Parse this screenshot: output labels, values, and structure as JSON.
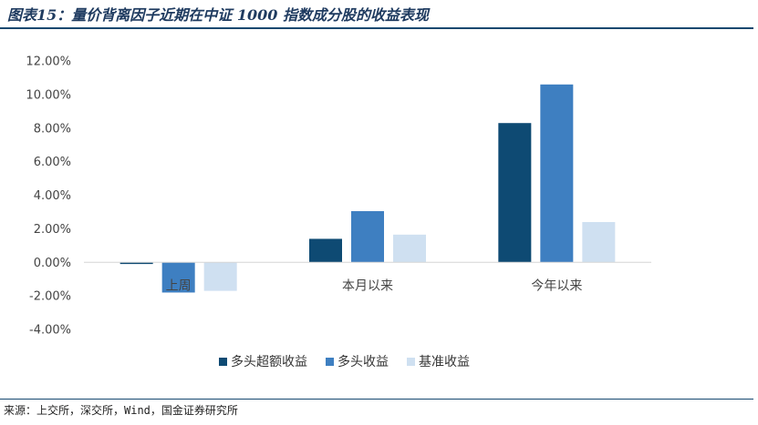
{
  "page": {
    "title": "图表15：量价背离因子近期在中证 1000 指数成分股的收益表现",
    "source": "来源：上交所，深交所，Wind，国金证券研究所"
  },
  "chart_data": {
    "type": "bar",
    "categories": [
      "上周",
      "本月以来",
      "今年以来"
    ],
    "series": [
      {
        "name": "多头超额收益",
        "color": "#0e4a73",
        "values": [
          -0.1,
          1.4,
          8.3
        ]
      },
      {
        "name": "多头收益",
        "color": "#3e7fc1",
        "values": [
          -1.8,
          3.05,
          10.6
        ]
      },
      {
        "name": "基准收益",
        "color": "#cfe0f1",
        "values": [
          -1.7,
          1.65,
          2.4
        ]
      }
    ],
    "y_ticks": [
      "12.00%",
      "10.00%",
      "8.00%",
      "6.00%",
      "4.00%",
      "2.00%",
      "0.00%",
      "-2.00%",
      "-4.00%"
    ],
    "ylim": [
      -4,
      12
    ],
    "grid": false,
    "legend_position": "bottom"
  }
}
